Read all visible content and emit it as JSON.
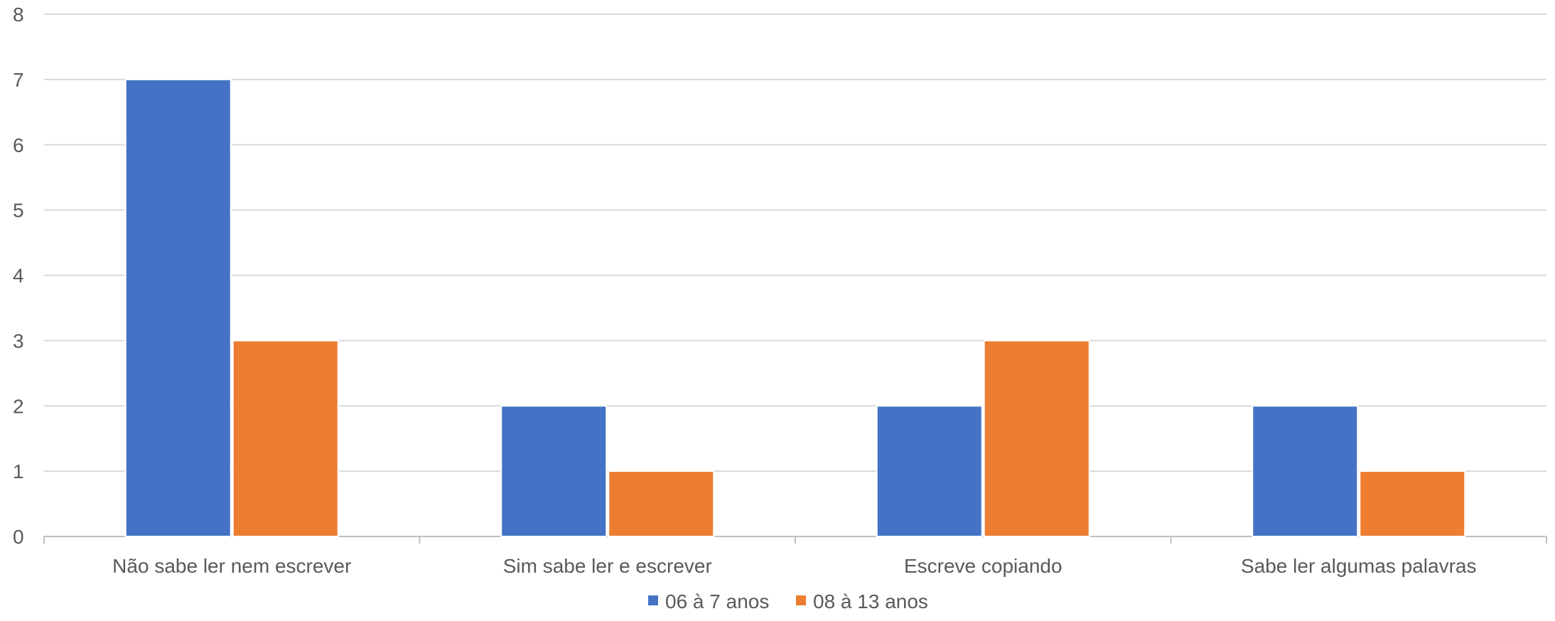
{
  "chart_data": {
    "type": "bar",
    "categories": [
      "Não sabe ler nem escrever",
      "Sim sabe ler e escrever",
      "Escreve copiando",
      "Sabe ler algumas palavras"
    ],
    "series": [
      {
        "name": "06 à 7 anos",
        "values": [
          7,
          2,
          2,
          2
        ],
        "color": "#4472C4"
      },
      {
        "name": "08 à 13 anos",
        "values": [
          3,
          1,
          3,
          1
        ],
        "color": "#ED7D31"
      }
    ],
    "title": "",
    "xlabel": "",
    "ylabel": "",
    "ylim": [
      0,
      8
    ],
    "yticks": [
      "0",
      "1",
      "2",
      "3",
      "4",
      "5",
      "6",
      "7",
      "8"
    ],
    "grid": true,
    "legend_position": "bottom"
  }
}
